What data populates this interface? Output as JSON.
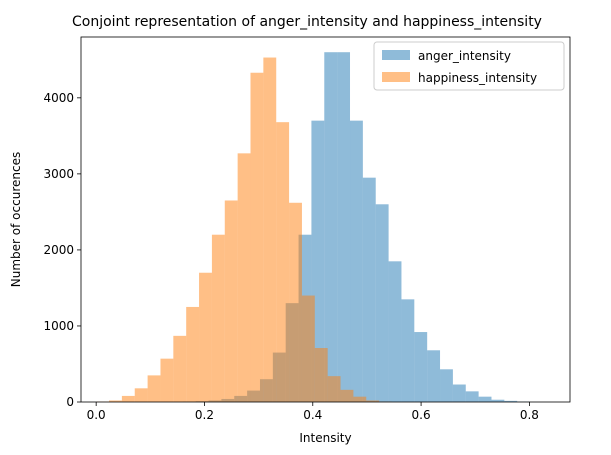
{
  "chart_data": {
    "type": "bar",
    "title": "Conjoint representation of anger_intensity and happiness_intensity",
    "xlabel": "Intensity",
    "ylabel": "Number of occurences",
    "xlim": [
      -0.028,
      0.875
    ],
    "ylim": [
      0,
      4800
    ],
    "x_ticks": [
      0.0,
      0.2,
      0.4,
      0.6,
      0.8
    ],
    "x_tick_labels": [
      "0.0",
      "0.2",
      "0.4",
      "0.6",
      "0.8"
    ],
    "y_ticks": [
      0,
      1000,
      2000,
      3000,
      4000
    ],
    "y_tick_labels": [
      "0",
      "1000",
      "2000",
      "3000",
      "4000"
    ],
    "legend_position": "top-right",
    "grid": false,
    "series": [
      {
        "name": "anger_intensity",
        "color": "#1f77b4",
        "opacity": 0.5,
        "bin_start": 0.065,
        "bin_width": 0.02375,
        "values": [
          0,
          0,
          0,
          0,
          5,
          10,
          20,
          40,
          80,
          150,
          300,
          650,
          1300,
          2200,
          3700,
          4600,
          4600,
          3700,
          2950,
          2600,
          1850,
          1350,
          920,
          680,
          430,
          230,
          140,
          70,
          30,
          15,
          5
        ]
      },
      {
        "name": "happiness_intensity",
        "color": "#ff7f0e",
        "opacity": 0.5,
        "bin_start": 0.0,
        "bin_width": 0.02375,
        "values": [
          5,
          20,
          80,
          180,
          350,
          570,
          870,
          1250,
          1700,
          2200,
          2650,
          3270,
          4330,
          4530,
          3680,
          2620,
          1400,
          710,
          340,
          160,
          70,
          20,
          5
        ]
      }
    ]
  }
}
